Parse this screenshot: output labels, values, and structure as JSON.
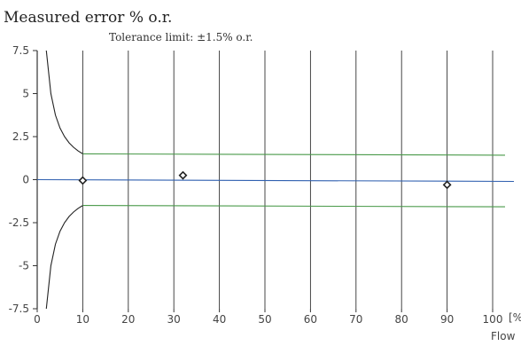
{
  "chart_data": {
    "type": "line",
    "title": "Measured error % o.r.",
    "subtitle": "Tolerance limit: ±1.5% o.r.",
    "xlabel": "Flow",
    "x_unit_label": "[%]",
    "xlim": [
      0,
      100
    ],
    "ylim": [
      -7.5,
      7.5
    ],
    "x_ticks": [
      0,
      10,
      20,
      30,
      40,
      50,
      60,
      70,
      80,
      90,
      100
    ],
    "y_ticks": [
      7.5,
      5,
      2.5,
      0,
      -2.5,
      -5,
      -7.5
    ],
    "y_tick_labels": [
      "7.5",
      "5",
      "2.5",
      "0",
      "-2.5",
      "-5",
      "-7.5"
    ],
    "grid": "vertical",
    "colors": {
      "tolerance": "#4a9a4a",
      "zero_line": "#3060b0",
      "curve": "#222222",
      "grid": "#333333",
      "marker": "#222222"
    },
    "series": [
      {
        "role": "tolerance-upper",
        "x": [
          2,
          3,
          4,
          5,
          6,
          7,
          8,
          9,
          10,
          100
        ],
        "y": [
          7.5,
          5.0,
          3.75,
          3.0,
          2.5,
          2.14,
          1.875,
          1.667,
          1.5,
          1.5
        ]
      },
      {
        "role": "tolerance-lower",
        "x": [
          2,
          3,
          4,
          5,
          6,
          7,
          8,
          9,
          10,
          100
        ],
        "y": [
          -7.5,
          -5.0,
          -3.75,
          -3.0,
          -2.5,
          -2.14,
          -1.875,
          -1.667,
          -1.5,
          -1.5
        ]
      },
      {
        "role": "measured-points",
        "x": [
          10,
          32,
          90
        ],
        "y": [
          -0.05,
          0.25,
          -0.3
        ]
      }
    ],
    "zero_line": {
      "y": 0
    }
  }
}
